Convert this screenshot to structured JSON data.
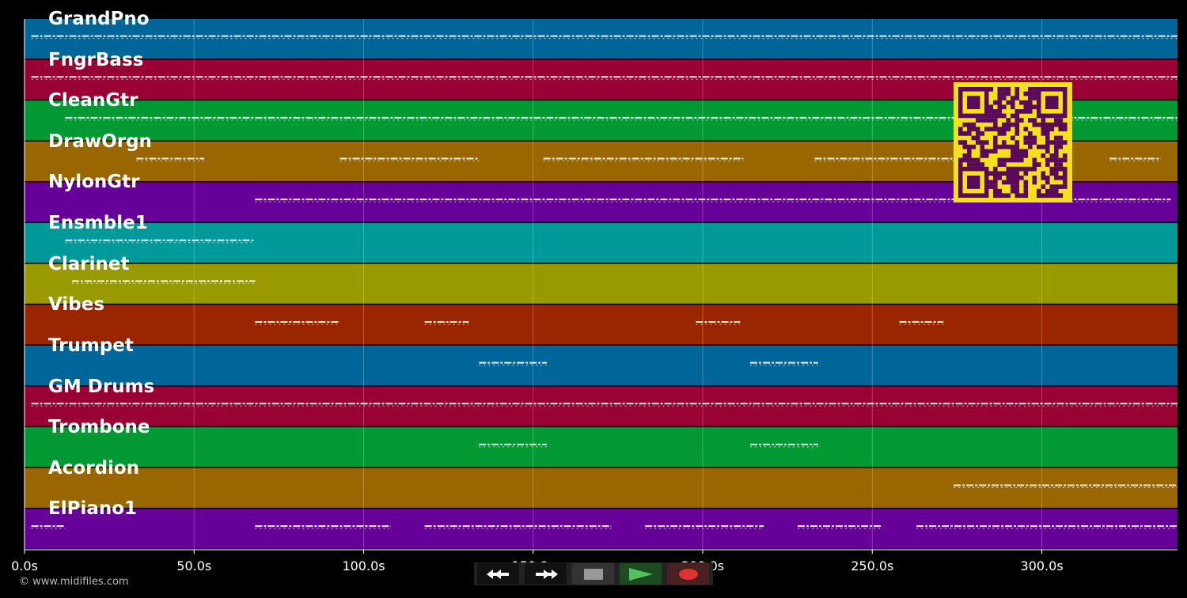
{
  "time_axis": {
    "max_seconds": 340,
    "ticks": [
      {
        "value": 0,
        "label": "0.0s"
      },
      {
        "value": 50,
        "label": "50.0s"
      },
      {
        "value": 100,
        "label": "100.0s"
      },
      {
        "value": 150,
        "label": "150.0s"
      },
      {
        "value": 200,
        "label": "200.0s"
      },
      {
        "value": 250,
        "label": "250.0s"
      },
      {
        "value": 300,
        "label": "300.0s"
      }
    ]
  },
  "tracks": [
    {
      "name": "GrandPno",
      "color": "#006699",
      "segments": [
        [
          2,
          340
        ]
      ]
    },
    {
      "name": "FngrBass",
      "color": "#990033",
      "segments": [
        [
          2,
          340
        ]
      ]
    },
    {
      "name": "CleanGtr",
      "color": "#009933",
      "segments": [
        [
          12,
          340
        ]
      ]
    },
    {
      "name": "DrawOrgn",
      "color": "#996600",
      "segments": [
        [
          33,
          53
        ],
        [
          93,
          134
        ],
        [
          153,
          212
        ],
        [
          233,
          280
        ],
        [
          320,
          335
        ]
      ]
    },
    {
      "name": "NylonGtr",
      "color": "#660099",
      "segments": [
        [
          68,
          338
        ]
      ]
    },
    {
      "name": "Ensmble1",
      "color": "#009999",
      "segments": [
        [
          12,
          68
        ]
      ]
    },
    {
      "name": "Clarinet",
      "color": "#999900",
      "segments": [
        [
          14,
          68
        ]
      ]
    },
    {
      "name": "Vibes",
      "color": "#992600",
      "segments": [
        [
          68,
          93
        ],
        [
          118,
          131
        ],
        [
          198,
          211
        ],
        [
          258,
          271
        ]
      ]
    },
    {
      "name": "Trumpet",
      "color": "#006699",
      "segments": [
        [
          134,
          154
        ],
        [
          214,
          234
        ]
      ]
    },
    {
      "name": "GM Drums",
      "color": "#990033",
      "segments": [
        [
          2,
          340
        ]
      ]
    },
    {
      "name": "Trombone",
      "color": "#009933",
      "segments": [
        [
          134,
          154
        ],
        [
          214,
          234
        ]
      ]
    },
    {
      "name": "Acordion",
      "color": "#996600",
      "segments": [
        [
          274,
          340
        ]
      ]
    },
    {
      "name": "ElPiano1",
      "color": "#660099",
      "segments": [
        [
          2,
          12
        ],
        [
          68,
          108
        ],
        [
          118,
          173
        ],
        [
          183,
          218
        ],
        [
          228,
          253
        ],
        [
          263,
          340
        ]
      ]
    }
  ],
  "controls": {
    "rewind": "rewind-icon",
    "fast_forward": "fast-forward-icon",
    "stop": "stop-icon",
    "play": "play-icon",
    "record": "record-icon"
  },
  "copyright": "© www.midifiles.com",
  "qr_colors": {
    "fg": "#5a0a5a",
    "bg": "#f5e020"
  }
}
